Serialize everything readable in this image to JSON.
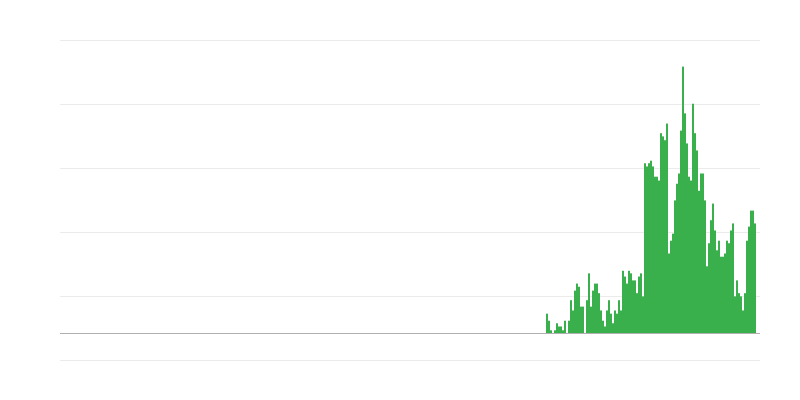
{
  "chart_data": {
    "type": "bar",
    "title": "",
    "xlabel": "",
    "ylabel": "",
    "grid": true,
    "legend": "none",
    "ylim": [
      0,
      46
    ],
    "leading_empty_bars": 243,
    "values": [
      3.1,
      2,
      0.5,
      0,
      0.5,
      1.6,
      1.1,
      1.1,
      0.5,
      2,
      0,
      2,
      5.2,
      3.6,
      6.7,
      7.8,
      7.3,
      4.2,
      4.2,
      0,
      5.2,
      9.4,
      4.2,
      6.7,
      7.8,
      7.8,
      6.3,
      3.6,
      2,
      1.1,
      3.6,
      5.2,
      3.1,
      1.6,
      3.6,
      3.1,
      5.2,
      3.6,
      9.8,
      8.9,
      7.8,
      9.8,
      9.4,
      8.3,
      8.3,
      6.3,
      8.9,
      9.4,
      5.8,
      26.6,
      26.1,
      26.6,
      27,
      26.1,
      24.5,
      24.5,
      23.9,
      31.3,
      30.8,
      30.2,
      32.8,
      12.5,
      14.5,
      15.6,
      20.8,
      23.4,
      25,
      31.7,
      41.7,
      34.4,
      29.7,
      24.5,
      23.9,
      35.9,
      31.3,
      28.6,
      22.3,
      25,
      25,
      20.8,
      10.5,
      14.1,
      17.7,
      20.3,
      16.1,
      13,
      14.5,
      12,
      12,
      12.5,
      14.5,
      14.1,
      16.1,
      17.2,
      5.8,
      8.3,
      6.3,
      5.8,
      3.6,
      6.3,
      14.5,
      16.7,
      19.2,
      19.2,
      17.2
    ],
    "colors": {
      "bar": "#39b04b",
      "grid": "#ebebeb",
      "baseline": "#b0b0b0"
    }
  }
}
